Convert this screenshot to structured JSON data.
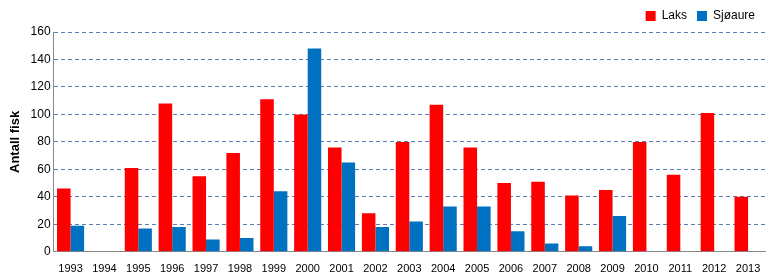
{
  "chart_data": {
    "type": "bar",
    "y_label": "Antall fisk",
    "categories": [
      "1993",
      "1994",
      "1995",
      "1996",
      "1997",
      "1998",
      "1999",
      "2000",
      "2001",
      "2002",
      "2003",
      "2004",
      "2005",
      "2006",
      "2007",
      "2008",
      "2009",
      "2010",
      "2011",
      "2012",
      "2013"
    ],
    "series": [
      {
        "name": "Laks",
        "color": "#ff0000",
        "values": [
          46,
          null,
          61,
          108,
          55,
          72,
          111,
          100,
          76,
          28,
          80,
          107,
          76,
          50,
          51,
          41,
          45,
          80,
          56,
          101,
          40
        ]
      },
      {
        "name": "Sjøaure",
        "color": "#0070c0",
        "values": [
          19,
          null,
          17,
          18,
          9,
          10,
          44,
          148,
          65,
          18,
          22,
          33,
          33,
          15,
          6,
          4,
          26,
          null,
          null,
          null,
          null
        ]
      }
    ],
    "ylim": [
      0,
      160
    ],
    "yticks": [
      0,
      20,
      40,
      60,
      80,
      100,
      120,
      140,
      160
    ],
    "grid": true,
    "legend": "top-right"
  }
}
